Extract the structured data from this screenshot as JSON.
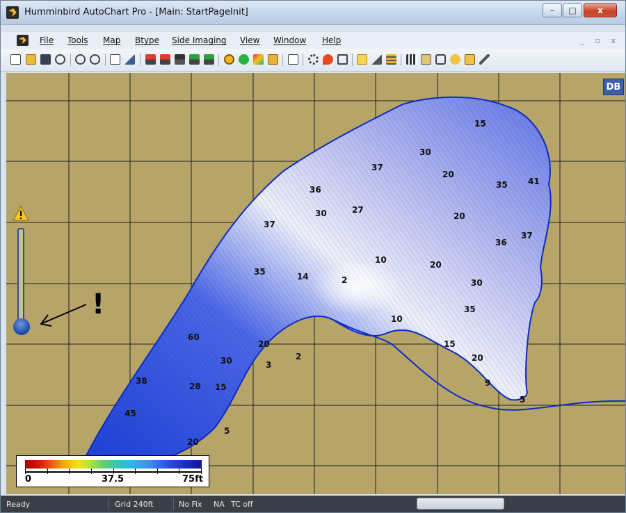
{
  "window": {
    "title": "Humminbird AutoChart Pro - [Main: StartPageInit]"
  },
  "window_controls": {
    "minimize": "–",
    "maximize": "□",
    "close": "x"
  },
  "menubar": {
    "items": [
      "File",
      "Tools",
      "Map",
      "Btype",
      "Side Imaging",
      "View",
      "Window",
      "Help"
    ],
    "mdi_controls": "_ ▫ x"
  },
  "toolbar": {
    "icons": [
      "new-icon",
      "open-icon",
      "save-icon",
      "export-icon",
      "zoom-in-icon",
      "zoom-out-icon",
      "page-icon",
      "chart-icon",
      "import-red-icon",
      "import-red2-icon",
      "import-black-icon",
      "import-green-icon",
      "import-green2-icon",
      "refresh-icon",
      "globe-icon",
      "layers-icon",
      "cube-icon",
      "document-icon",
      "settings-icon",
      "marker-icon",
      "print-icon",
      "notes-icon",
      "triangle-icon",
      "waveform-icon",
      "grid-icon",
      "camera-icon",
      "boat-icon",
      "route-icon",
      "pin-icon",
      "pencil-icon"
    ]
  },
  "map": {
    "badge": "DB",
    "depth_labels": [
      "15",
      "30",
      "20",
      "37",
      "41",
      "36",
      "35",
      "30",
      "27",
      "37",
      "20",
      "36",
      "37",
      "10",
      "20",
      "35",
      "14",
      "2",
      "30",
      "10",
      "35",
      "15",
      "20",
      "3",
      "2",
      "60",
      "30",
      "20",
      "28",
      "15",
      "9",
      "5",
      "45",
      "5",
      "20",
      "38"
    ],
    "annotation": "!"
  },
  "legend": {
    "min": "0",
    "mid": "37.5",
    "max": "75ft"
  },
  "status": {
    "ready": "Ready",
    "grid": "Grid 240ft",
    "fix": "No Fix",
    "na": "NA",
    "tc": "TC off"
  }
}
